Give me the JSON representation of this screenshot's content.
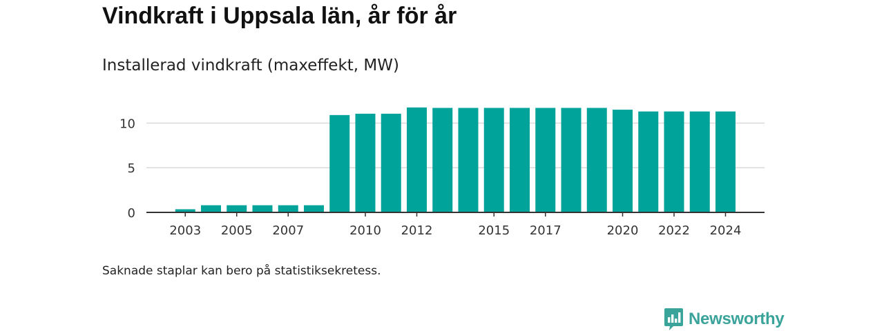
{
  "title": "Vindkraft i Uppsala län, år för år",
  "subtitle": "Installerad vindkraft (maxeffekt, MW)",
  "footnote": "Saknade staplar kan bero på statistiksekretess.",
  "brand": {
    "name": "Newsworthy",
    "color": "#3aa39a",
    "icon": "newsworthy-logo-icon"
  },
  "colors": {
    "bar": "#00a39a",
    "grid": "#d9d9d9",
    "axis": "#333333"
  },
  "chart_data": {
    "type": "bar",
    "title": "Installerad vindkraft (maxeffekt, MW)",
    "xlabel": "",
    "ylabel": "",
    "categories": [
      "2002",
      "2003",
      "2004",
      "2005",
      "2006",
      "2007",
      "2008",
      "2009",
      "2010",
      "2011",
      "2012",
      "2013",
      "2014",
      "2015",
      "2016",
      "2017",
      "2018",
      "2019",
      "2020",
      "2021",
      "2022",
      "2023",
      "2024"
    ],
    "values": [
      0.0,
      0.35,
      0.8,
      0.8,
      0.8,
      0.8,
      0.8,
      10.9,
      11.05,
      11.05,
      11.75,
      11.7,
      11.7,
      11.7,
      11.7,
      11.7,
      11.7,
      11.7,
      11.5,
      11.3,
      11.3,
      11.3,
      11.3
    ],
    "xtick_labels": [
      "2003",
      "2005",
      "2007",
      "2010",
      "2012",
      "2015",
      "2017",
      "2020",
      "2022",
      "2024"
    ],
    "yticks": [
      0,
      5,
      10
    ],
    "ytick_labels": [
      "0",
      "5",
      "10"
    ],
    "ylim": [
      0,
      12.2
    ],
    "grid": true
  }
}
